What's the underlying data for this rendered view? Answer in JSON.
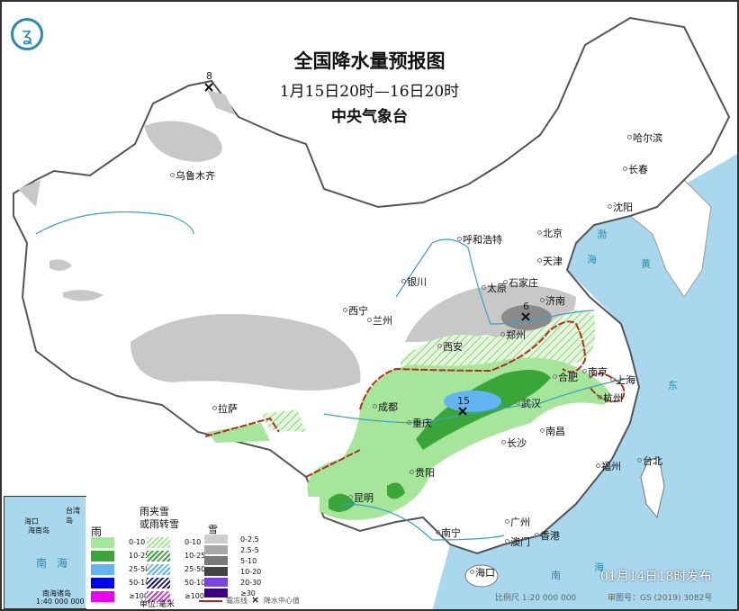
{
  "header": {
    "title": "全国降水量预报图",
    "period": "1月15日20时—16日20时",
    "issuer": "中央气象台"
  },
  "cities": [
    {
      "name": "乌鲁木齐"
    },
    {
      "name": "哈尔滨"
    },
    {
      "name": "长春"
    },
    {
      "name": "沈阳"
    },
    {
      "name": "呼和浩特"
    },
    {
      "name": "北京"
    },
    {
      "name": "天津"
    },
    {
      "name": "银川"
    },
    {
      "name": "石家庄"
    },
    {
      "name": "太原"
    },
    {
      "name": "济南"
    },
    {
      "name": "西宁"
    },
    {
      "name": "兰州"
    },
    {
      "name": "郑州"
    },
    {
      "name": "西安"
    },
    {
      "name": "合肥"
    },
    {
      "name": "南京"
    },
    {
      "name": "上海"
    },
    {
      "name": "杭州"
    },
    {
      "name": "成都"
    },
    {
      "name": "武汉"
    },
    {
      "name": "重庆"
    },
    {
      "name": "拉萨"
    },
    {
      "name": "长沙"
    },
    {
      "name": "南昌"
    },
    {
      "name": "贵阳"
    },
    {
      "name": "福州"
    },
    {
      "name": "台北"
    },
    {
      "name": "昆明"
    },
    {
      "name": "南宁"
    },
    {
      "name": "广州"
    },
    {
      "name": "澳门"
    },
    {
      "name": "香港"
    },
    {
      "name": "海口"
    }
  ],
  "centers": [
    {
      "value": "8"
    },
    {
      "value": "6"
    },
    {
      "value": "15"
    }
  ],
  "seas": {
    "bohai": "渤",
    "yellow": "黄",
    "east": "东",
    "south_a": "南",
    "south_b": "海",
    "sea_char": "海"
  },
  "legend": {
    "rain": {
      "title": "雨",
      "items": [
        {
          "label": "0-10",
          "color": "#a6e69a"
        },
        {
          "label": "10-25",
          "color": "#3aa63a"
        },
        {
          "label": "25-50",
          "color": "#62b4f2"
        },
        {
          "label": "50-100",
          "color": "#0000f0"
        },
        {
          "label": "≥100",
          "color": "#f000f0"
        }
      ]
    },
    "mixed": {
      "title_1": "雨夹雪",
      "title_2": "或雨转雪",
      "items": [
        {
          "label": "0-10",
          "color": "#a6e69a"
        },
        {
          "label": "10-25",
          "color": "#3aa63a"
        },
        {
          "label": "25-50",
          "color": "#62b4f2"
        },
        {
          "label": "50-100",
          "color": "#1a1a80"
        },
        {
          "label": "≥100",
          "color": "#c040c0"
        }
      ]
    },
    "snow": {
      "title": "雪",
      "items": [
        {
          "label": "0-2.5",
          "color": "#cfcfcf"
        },
        {
          "label": "2.5-5",
          "color": "#a8a8a8"
        },
        {
          "label": "5-10",
          "color": "#7a7a7a"
        },
        {
          "label": "10-20",
          "color": "#444444"
        },
        {
          "label": "20-30",
          "color": "#7a44e0"
        },
        {
          "label": "≥30",
          "color": "#3a0080"
        }
      ]
    },
    "unit": "单位:毫米",
    "freeze_line": "霜冻线",
    "center_mark": "×",
    "center_label": "降水中心值"
  },
  "inset": {
    "sea_a": "南",
    "sea_b": "海",
    "islands": "南海诸岛",
    "scale": "1:40 000 000",
    "haikou": "海口",
    "hainan": "海南岛",
    "taiwan": "台湾岛"
  },
  "footer": {
    "issued": "01月14日18时发布",
    "scale": "比例尺 1:20 000 000",
    "review": "审图号：GS (2019) 3082号"
  },
  "colors": {
    "sea": "#a9d8ee",
    "freeze_line": "#c0202a",
    "river": "#3aa0c8"
  }
}
